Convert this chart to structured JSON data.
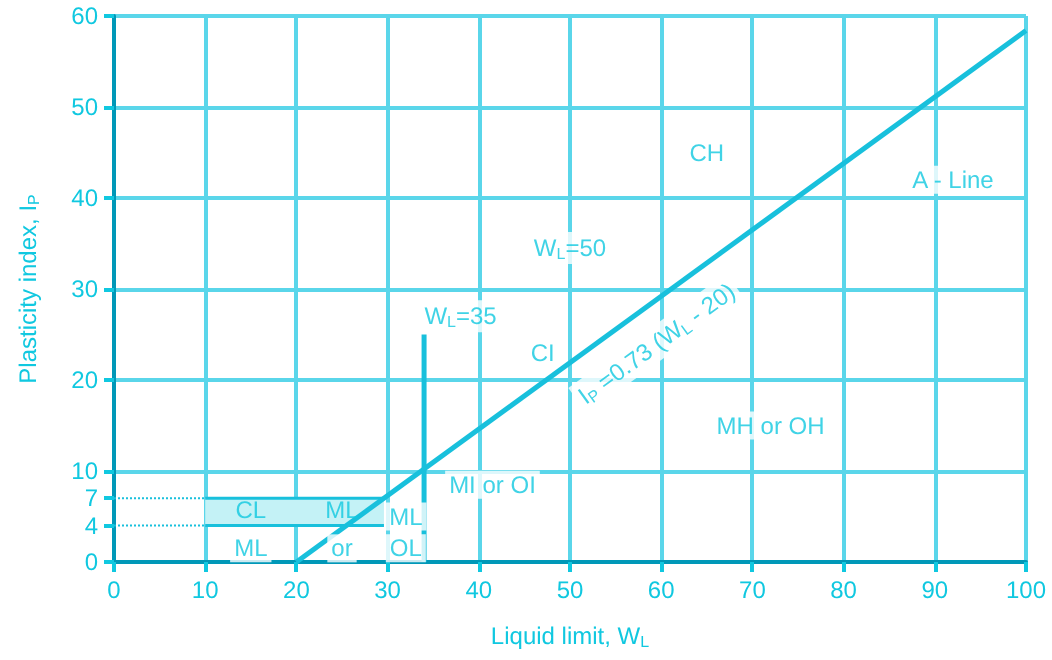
{
  "chart_data": {
    "type": "line",
    "xlabel": "Liquid limit, W$_{L}$",
    "ylabel": "Plasticity index, I$_{P}$",
    "xlim": [
      0,
      100
    ],
    "xticks": [
      0,
      10,
      20,
      30,
      40,
      50,
      60,
      70,
      80,
      90,
      100
    ],
    "ylim": [
      0,
      60
    ],
    "yticks": [
      0,
      4,
      7,
      10,
      20,
      30,
      40,
      50,
      60
    ],
    "grid": true,
    "marker": "none",
    "line_style": "solid",
    "series": [
      {
        "color": "#18c0dc",
        "x": [
          20,
          100
        ],
        "values": [
          0,
          58.4
        ]
      },
      {
        "color": "#18c0dc",
        "x": [
          34,
          34
        ],
        "values": [
          0,
          25
        ]
      },
      {
        "color": "#18c0dc",
        "x": [
          10,
          29.6
        ],
        "values": [
          4,
          4
        ]
      },
      {
        "type": "area",
        "color": "#c4f2f6",
        "x": [
          10,
          29.6
        ],
        "values": [
          7,
          7
        ]
      }
    ],
    "annotations": [
      "CH",
      "A - Line",
      "W$_{L}$=50",
      "W$_{L}$=35",
      "CI",
      "I$_{P}$ =0.73 (W$_{L}$ - 20)",
      "MH or OH",
      "MI or OI",
      "CL",
      "ML",
      "ML",
      "or",
      "ML",
      "OL"
    ]
  }
}
